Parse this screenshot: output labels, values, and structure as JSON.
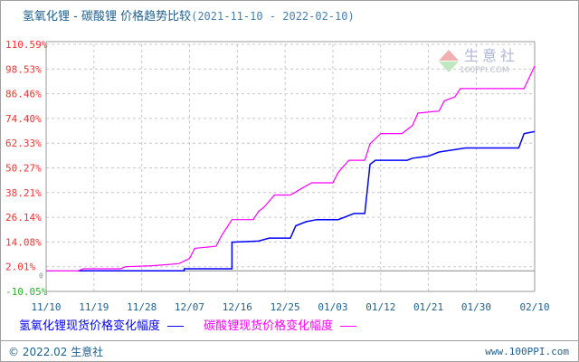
{
  "title": {
    "main": "氢氧化锂 - 碳酸锂 价格趋势比较",
    "range": "(2021-11-10 - 2022-02-10)"
  },
  "logo": {
    "cn": "生意社",
    "en": "100PPI.COM"
  },
  "footer": {
    "copyright": "© 2022.02 生意社",
    "site": "www.100PPI.com"
  },
  "chart_data": {
    "type": "line",
    "step": true,
    "xlim": [
      "2021-11-10",
      "2022-02-10"
    ],
    "ylim": [
      -10.05,
      110.59
    ],
    "yticks": [
      "-10.05%",
      "2.01%",
      "14.08%",
      "26.14%",
      "38.21%",
      "50.27%",
      "62.33%",
      "74.40%",
      "86.46%",
      "98.53%",
      "110.59%"
    ],
    "ytick_values": [
      -10.05,
      2.01,
      14.08,
      26.14,
      38.21,
      50.27,
      62.33,
      74.4,
      86.46,
      98.53,
      110.59
    ],
    "zero_label": "0",
    "xticks": [
      "11/10",
      "11/19",
      "11/28",
      "12/07",
      "12/16",
      "12/25",
      "01/03",
      "01/12",
      "01/21",
      "01/30",
      "02/10"
    ],
    "xtick_dates": [
      "2021-11-10",
      "2021-11-19",
      "2021-11-28",
      "2021-12-07",
      "2021-12-16",
      "2021-12-25",
      "2022-01-03",
      "2022-01-12",
      "2022-01-21",
      "2022-01-30",
      "2022-02-10"
    ],
    "grid": true,
    "legend_position": "bottom",
    "series": [
      {
        "name": "氢氧化锂现货价格变化幅度",
        "color": "#0000ff",
        "points": [
          [
            "2021-11-16",
            0
          ],
          [
            "2021-12-06",
            0
          ],
          [
            "2021-12-06",
            1
          ],
          [
            "2021-12-15",
            1
          ],
          [
            "2021-12-15",
            14
          ],
          [
            "2021-12-20",
            14.5
          ],
          [
            "2021-12-22",
            16
          ],
          [
            "2021-12-26",
            16
          ],
          [
            "2021-12-27",
            22
          ],
          [
            "2021-12-29",
            24
          ],
          [
            "2021-12-31",
            25
          ],
          [
            "2022-01-04",
            25
          ],
          [
            "2022-01-07",
            28
          ],
          [
            "2022-01-09",
            28
          ],
          [
            "2022-01-10",
            52
          ],
          [
            "2022-01-11",
            54
          ],
          [
            "2022-01-17",
            54
          ],
          [
            "2022-01-18",
            55
          ],
          [
            "2022-01-21",
            56
          ],
          [
            "2022-01-23",
            58
          ],
          [
            "2022-01-28",
            60
          ],
          [
            "2022-02-07",
            60
          ],
          [
            "2022-02-08",
            67
          ],
          [
            "2022-02-10",
            68
          ]
        ]
      },
      {
        "name": "碳酸锂现货价格变化幅度",
        "color": "#ff00ff",
        "points": [
          [
            "2021-11-10",
            0
          ],
          [
            "2021-11-16",
            0
          ],
          [
            "2021-11-17",
            1
          ],
          [
            "2021-11-24",
            1
          ],
          [
            "2021-11-25",
            2
          ],
          [
            "2021-11-30",
            2.5
          ],
          [
            "2021-12-05",
            3.5
          ],
          [
            "2021-12-07",
            6
          ],
          [
            "2021-12-08",
            11
          ],
          [
            "2021-12-12",
            12
          ],
          [
            "2021-12-13",
            17
          ],
          [
            "2021-12-15",
            25
          ],
          [
            "2021-12-19",
            25
          ],
          [
            "2021-12-20",
            29
          ],
          [
            "2021-12-21",
            31
          ],
          [
            "2021-12-23",
            37
          ],
          [
            "2021-12-26",
            37
          ],
          [
            "2021-12-28",
            40
          ],
          [
            "2021-12-30",
            43
          ],
          [
            "2022-01-03",
            43
          ],
          [
            "2022-01-04",
            48
          ],
          [
            "2022-01-06",
            54
          ],
          [
            "2022-01-09",
            54
          ],
          [
            "2022-01-10",
            62
          ],
          [
            "2022-01-12",
            67
          ],
          [
            "2022-01-16",
            67
          ],
          [
            "2022-01-18",
            71
          ],
          [
            "2022-01-19",
            77
          ],
          [
            "2022-01-23",
            78
          ],
          [
            "2022-01-24",
            83
          ],
          [
            "2022-01-26",
            85
          ],
          [
            "2022-01-27",
            89
          ],
          [
            "2022-02-08",
            89
          ],
          [
            "2022-02-10",
            100
          ]
        ]
      }
    ]
  }
}
